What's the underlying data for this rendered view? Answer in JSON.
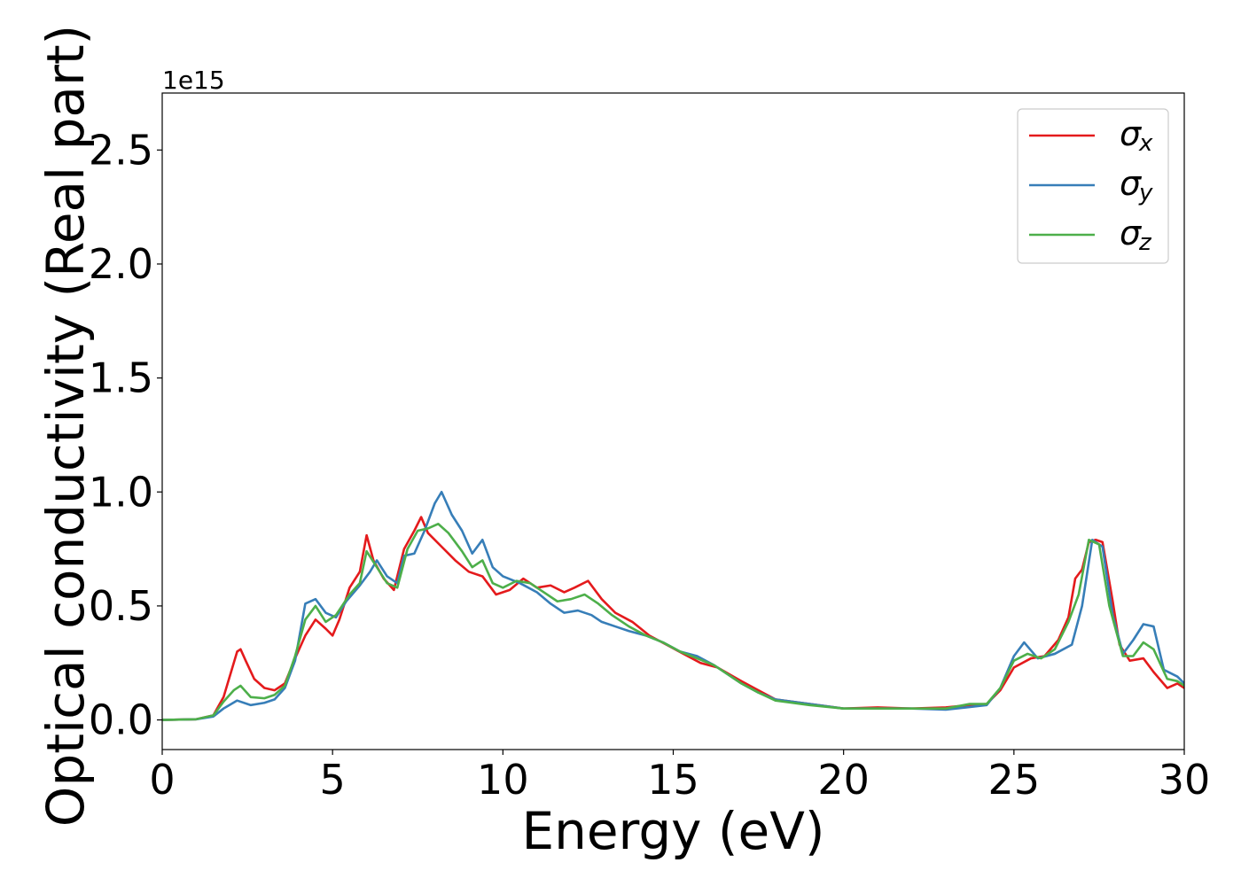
{
  "chart_data": {
    "type": "line",
    "title": "",
    "xlabel": "Energy (eV)",
    "ylabel": "Optical conductivity (Real part)",
    "y_offset_text": "1e15",
    "xlim": [
      0,
      30
    ],
    "ylim": [
      -0.13,
      2.75
    ],
    "x_ticks": [
      0,
      5,
      10,
      15,
      20,
      25,
      30
    ],
    "x_tick_labels": [
      "0",
      "5",
      "10",
      "15",
      "20",
      "25",
      "30"
    ],
    "y_ticks": [
      0.0,
      0.5,
      1.0,
      1.5,
      2.0,
      2.5
    ],
    "y_tick_labels": [
      "0.0",
      "0.5",
      "1.0",
      "1.5",
      "2.0",
      "2.5"
    ],
    "grid": false,
    "legend_position": "top-right",
    "series": [
      {
        "name_symbol": "σ",
        "name_subscript": "x",
        "color": "#e41a1c",
        "points": [
          [
            0,
            0
          ],
          [
            1,
            0.003
          ],
          [
            1.5,
            0.02
          ],
          [
            1.8,
            0.1
          ],
          [
            2.0,
            0.2
          ],
          [
            2.2,
            0.3
          ],
          [
            2.3,
            0.31
          ],
          [
            2.45,
            0.26
          ],
          [
            2.7,
            0.18
          ],
          [
            3.0,
            0.14
          ],
          [
            3.3,
            0.13
          ],
          [
            3.6,
            0.16
          ],
          [
            3.9,
            0.27
          ],
          [
            4.2,
            0.37
          ],
          [
            4.5,
            0.44
          ],
          [
            4.8,
            0.4
          ],
          [
            5.0,
            0.37
          ],
          [
            5.2,
            0.44
          ],
          [
            5.5,
            0.58
          ],
          [
            5.8,
            0.65
          ],
          [
            6.0,
            0.81
          ],
          [
            6.2,
            0.7
          ],
          [
            6.5,
            0.62
          ],
          [
            6.8,
            0.57
          ],
          [
            7.1,
            0.75
          ],
          [
            7.4,
            0.83
          ],
          [
            7.6,
            0.89
          ],
          [
            7.8,
            0.82
          ],
          [
            8.2,
            0.76
          ],
          [
            8.6,
            0.7
          ],
          [
            9.0,
            0.65
          ],
          [
            9.4,
            0.63
          ],
          [
            9.8,
            0.55
          ],
          [
            10.2,
            0.57
          ],
          [
            10.6,
            0.62
          ],
          [
            11.0,
            0.58
          ],
          [
            11.4,
            0.59
          ],
          [
            11.8,
            0.56
          ],
          [
            12.1,
            0.58
          ],
          [
            12.5,
            0.61
          ],
          [
            12.9,
            0.53
          ],
          [
            13.3,
            0.47
          ],
          [
            13.8,
            0.43
          ],
          [
            14.3,
            0.37
          ],
          [
            14.8,
            0.33
          ],
          [
            15.3,
            0.29
          ],
          [
            15.8,
            0.25
          ],
          [
            16.3,
            0.23
          ],
          [
            17.0,
            0.17
          ],
          [
            17.5,
            0.13
          ],
          [
            18.0,
            0.09
          ],
          [
            19.0,
            0.07
          ],
          [
            20.0,
            0.05
          ],
          [
            21.0,
            0.055
          ],
          [
            22.0,
            0.05
          ],
          [
            23.0,
            0.055
          ],
          [
            23.7,
            0.065
          ],
          [
            24.2,
            0.07
          ],
          [
            24.6,
            0.13
          ],
          [
            25.0,
            0.23
          ],
          [
            25.5,
            0.27
          ],
          [
            25.9,
            0.28
          ],
          [
            26.3,
            0.35
          ],
          [
            26.6,
            0.45
          ],
          [
            26.8,
            0.62
          ],
          [
            27.0,
            0.66
          ],
          [
            27.2,
            0.78
          ],
          [
            27.4,
            0.79
          ],
          [
            27.6,
            0.78
          ],
          [
            27.9,
            0.52
          ],
          [
            28.1,
            0.33
          ],
          [
            28.4,
            0.26
          ],
          [
            28.8,
            0.27
          ],
          [
            29.1,
            0.21
          ],
          [
            29.5,
            0.14
          ],
          [
            29.8,
            0.16
          ],
          [
            30.0,
            0.14
          ]
        ]
      },
      {
        "name_symbol": "σ",
        "name_subscript": "y",
        "color": "#377eb8",
        "points": [
          [
            0,
            0
          ],
          [
            1,
            0.003
          ],
          [
            1.5,
            0.015
          ],
          [
            1.8,
            0.05
          ],
          [
            2.2,
            0.085
          ],
          [
            2.6,
            0.065
          ],
          [
            3.0,
            0.075
          ],
          [
            3.3,
            0.09
          ],
          [
            3.6,
            0.14
          ],
          [
            3.9,
            0.26
          ],
          [
            4.2,
            0.51
          ],
          [
            4.5,
            0.53
          ],
          [
            4.8,
            0.47
          ],
          [
            5.1,
            0.45
          ],
          [
            5.4,
            0.52
          ],
          [
            5.8,
            0.59
          ],
          [
            6.1,
            0.65
          ],
          [
            6.3,
            0.7
          ],
          [
            6.6,
            0.63
          ],
          [
            6.9,
            0.6
          ],
          [
            7.1,
            0.72
          ],
          [
            7.4,
            0.73
          ],
          [
            7.7,
            0.83
          ],
          [
            8.0,
            0.95
          ],
          [
            8.2,
            1.0
          ],
          [
            8.5,
            0.9
          ],
          [
            8.8,
            0.83
          ],
          [
            9.1,
            0.73
          ],
          [
            9.4,
            0.79
          ],
          [
            9.7,
            0.67
          ],
          [
            10.0,
            0.63
          ],
          [
            10.5,
            0.6
          ],
          [
            11.0,
            0.56
          ],
          [
            11.4,
            0.51
          ],
          [
            11.8,
            0.47
          ],
          [
            12.2,
            0.48
          ],
          [
            12.6,
            0.46
          ],
          [
            12.9,
            0.43
          ],
          [
            13.3,
            0.41
          ],
          [
            13.7,
            0.39
          ],
          [
            14.2,
            0.37
          ],
          [
            14.7,
            0.34
          ],
          [
            15.2,
            0.3
          ],
          [
            15.7,
            0.28
          ],
          [
            16.2,
            0.24
          ],
          [
            17.0,
            0.16
          ],
          [
            17.5,
            0.12
          ],
          [
            18.0,
            0.09
          ],
          [
            19.0,
            0.07
          ],
          [
            20.0,
            0.05
          ],
          [
            21.0,
            0.05
          ],
          [
            22.0,
            0.05
          ],
          [
            23.0,
            0.045
          ],
          [
            23.6,
            0.055
          ],
          [
            24.2,
            0.065
          ],
          [
            24.6,
            0.14
          ],
          [
            25.0,
            0.28
          ],
          [
            25.3,
            0.34
          ],
          [
            25.7,
            0.27
          ],
          [
            26.2,
            0.29
          ],
          [
            26.7,
            0.33
          ],
          [
            27.0,
            0.5
          ],
          [
            27.3,
            0.79
          ],
          [
            27.6,
            0.76
          ],
          [
            27.9,
            0.46
          ],
          [
            28.2,
            0.29
          ],
          [
            28.5,
            0.35
          ],
          [
            28.8,
            0.42
          ],
          [
            29.1,
            0.41
          ],
          [
            29.4,
            0.22
          ],
          [
            29.8,
            0.19
          ],
          [
            30.0,
            0.16
          ]
        ]
      },
      {
        "name_symbol": "σ",
        "name_subscript": "z",
        "color": "#4daf4a",
        "points": [
          [
            0,
            0
          ],
          [
            1,
            0.003
          ],
          [
            1.5,
            0.02
          ],
          [
            1.8,
            0.08
          ],
          [
            2.1,
            0.13
          ],
          [
            2.3,
            0.15
          ],
          [
            2.6,
            0.1
          ],
          [
            3.0,
            0.095
          ],
          [
            3.3,
            0.11
          ],
          [
            3.6,
            0.15
          ],
          [
            3.9,
            0.28
          ],
          [
            4.2,
            0.44
          ],
          [
            4.5,
            0.5
          ],
          [
            4.8,
            0.43
          ],
          [
            5.1,
            0.46
          ],
          [
            5.5,
            0.55
          ],
          [
            5.8,
            0.6
          ],
          [
            6.0,
            0.74
          ],
          [
            6.3,
            0.67
          ],
          [
            6.6,
            0.6
          ],
          [
            6.9,
            0.58
          ],
          [
            7.2,
            0.75
          ],
          [
            7.5,
            0.83
          ],
          [
            7.8,
            0.84
          ],
          [
            8.1,
            0.86
          ],
          [
            8.4,
            0.82
          ],
          [
            8.8,
            0.74
          ],
          [
            9.1,
            0.67
          ],
          [
            9.4,
            0.7
          ],
          [
            9.7,
            0.6
          ],
          [
            10.0,
            0.58
          ],
          [
            10.4,
            0.61
          ],
          [
            10.8,
            0.6
          ],
          [
            11.2,
            0.56
          ],
          [
            11.6,
            0.52
          ],
          [
            12.0,
            0.53
          ],
          [
            12.4,
            0.55
          ],
          [
            12.8,
            0.51
          ],
          [
            13.2,
            0.46
          ],
          [
            13.7,
            0.41
          ],
          [
            14.2,
            0.37
          ],
          [
            14.7,
            0.34
          ],
          [
            15.2,
            0.3
          ],
          [
            15.7,
            0.27
          ],
          [
            16.2,
            0.24
          ],
          [
            17.0,
            0.16
          ],
          [
            17.5,
            0.12
          ],
          [
            18.0,
            0.085
          ],
          [
            19.0,
            0.065
          ],
          [
            20.0,
            0.05
          ],
          [
            21.0,
            0.05
          ],
          [
            22.0,
            0.05
          ],
          [
            23.0,
            0.05
          ],
          [
            23.7,
            0.07
          ],
          [
            24.2,
            0.07
          ],
          [
            24.6,
            0.14
          ],
          [
            25.0,
            0.26
          ],
          [
            25.4,
            0.29
          ],
          [
            25.8,
            0.27
          ],
          [
            26.2,
            0.31
          ],
          [
            26.6,
            0.43
          ],
          [
            26.9,
            0.55
          ],
          [
            27.2,
            0.79
          ],
          [
            27.5,
            0.77
          ],
          [
            27.8,
            0.5
          ],
          [
            28.2,
            0.28
          ],
          [
            28.5,
            0.28
          ],
          [
            28.8,
            0.34
          ],
          [
            29.1,
            0.31
          ],
          [
            29.5,
            0.18
          ],
          [
            29.8,
            0.17
          ],
          [
            30.0,
            0.15
          ]
        ]
      }
    ]
  }
}
